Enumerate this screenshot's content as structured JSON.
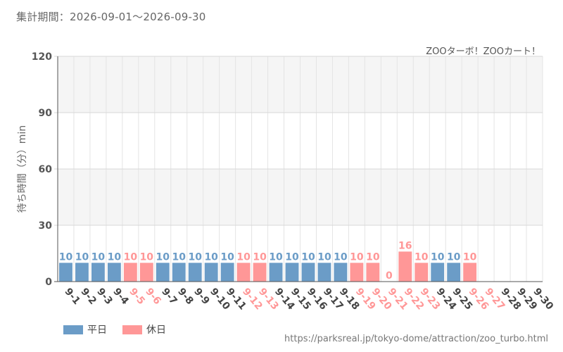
{
  "period_label": "集計期間：2026-09-01～2026-09-30",
  "source_url": "https://parksreal.jp/tokyo-dome/attraction/zoo_turbo.html",
  "colors": {
    "weekday": "#6b9cc7",
    "holiday": "#ff9797",
    "grid": "#e4e4e4",
    "band": "#f5f5f5"
  },
  "legend": {
    "weekday_label": "平日",
    "holiday_label": "休日"
  },
  "chart_data": {
    "type": "bar",
    "title": "ZOOターボ！ZOOカート！",
    "ylabel": "待ち時間（分）min",
    "xlabel": "",
    "ylim": [
      0,
      120
    ],
    "yticks": [
      0,
      30,
      60,
      90,
      120
    ],
    "grid": true,
    "legend_position": "bottom-left",
    "categories": [
      "9-1",
      "9-2",
      "9-3",
      "9-4",
      "9-5",
      "9-6",
      "9-7",
      "9-8",
      "9-9",
      "9-10",
      "9-11",
      "9-12",
      "9-13",
      "9-14",
      "9-15",
      "9-16",
      "9-17",
      "9-18",
      "9-19",
      "9-20",
      "9-21",
      "9-22",
      "9-23",
      "9-24",
      "9-25",
      "9-26",
      "9-27",
      "9-28",
      "9-29",
      "9-30"
    ],
    "day_type": [
      "weekday",
      "weekday",
      "weekday",
      "weekday",
      "holiday",
      "holiday",
      "weekday",
      "weekday",
      "weekday",
      "weekday",
      "weekday",
      "holiday",
      "holiday",
      "weekday",
      "weekday",
      "weekday",
      "weekday",
      "weekday",
      "holiday",
      "holiday",
      "holiday",
      "holiday",
      "holiday",
      "weekday",
      "weekday",
      "holiday",
      "holiday",
      "weekday",
      "weekday",
      "weekday"
    ],
    "values": [
      10,
      10,
      10,
      10,
      10,
      10,
      10,
      10,
      10,
      10,
      10,
      10,
      10,
      10,
      10,
      10,
      10,
      10,
      10,
      10,
      0,
      16,
      10,
      10,
      10,
      10,
      null,
      null,
      null,
      null
    ],
    "series": [
      {
        "name": "平日",
        "color": "#6b9cc7"
      },
      {
        "name": "休日",
        "color": "#ff9797"
      }
    ]
  }
}
